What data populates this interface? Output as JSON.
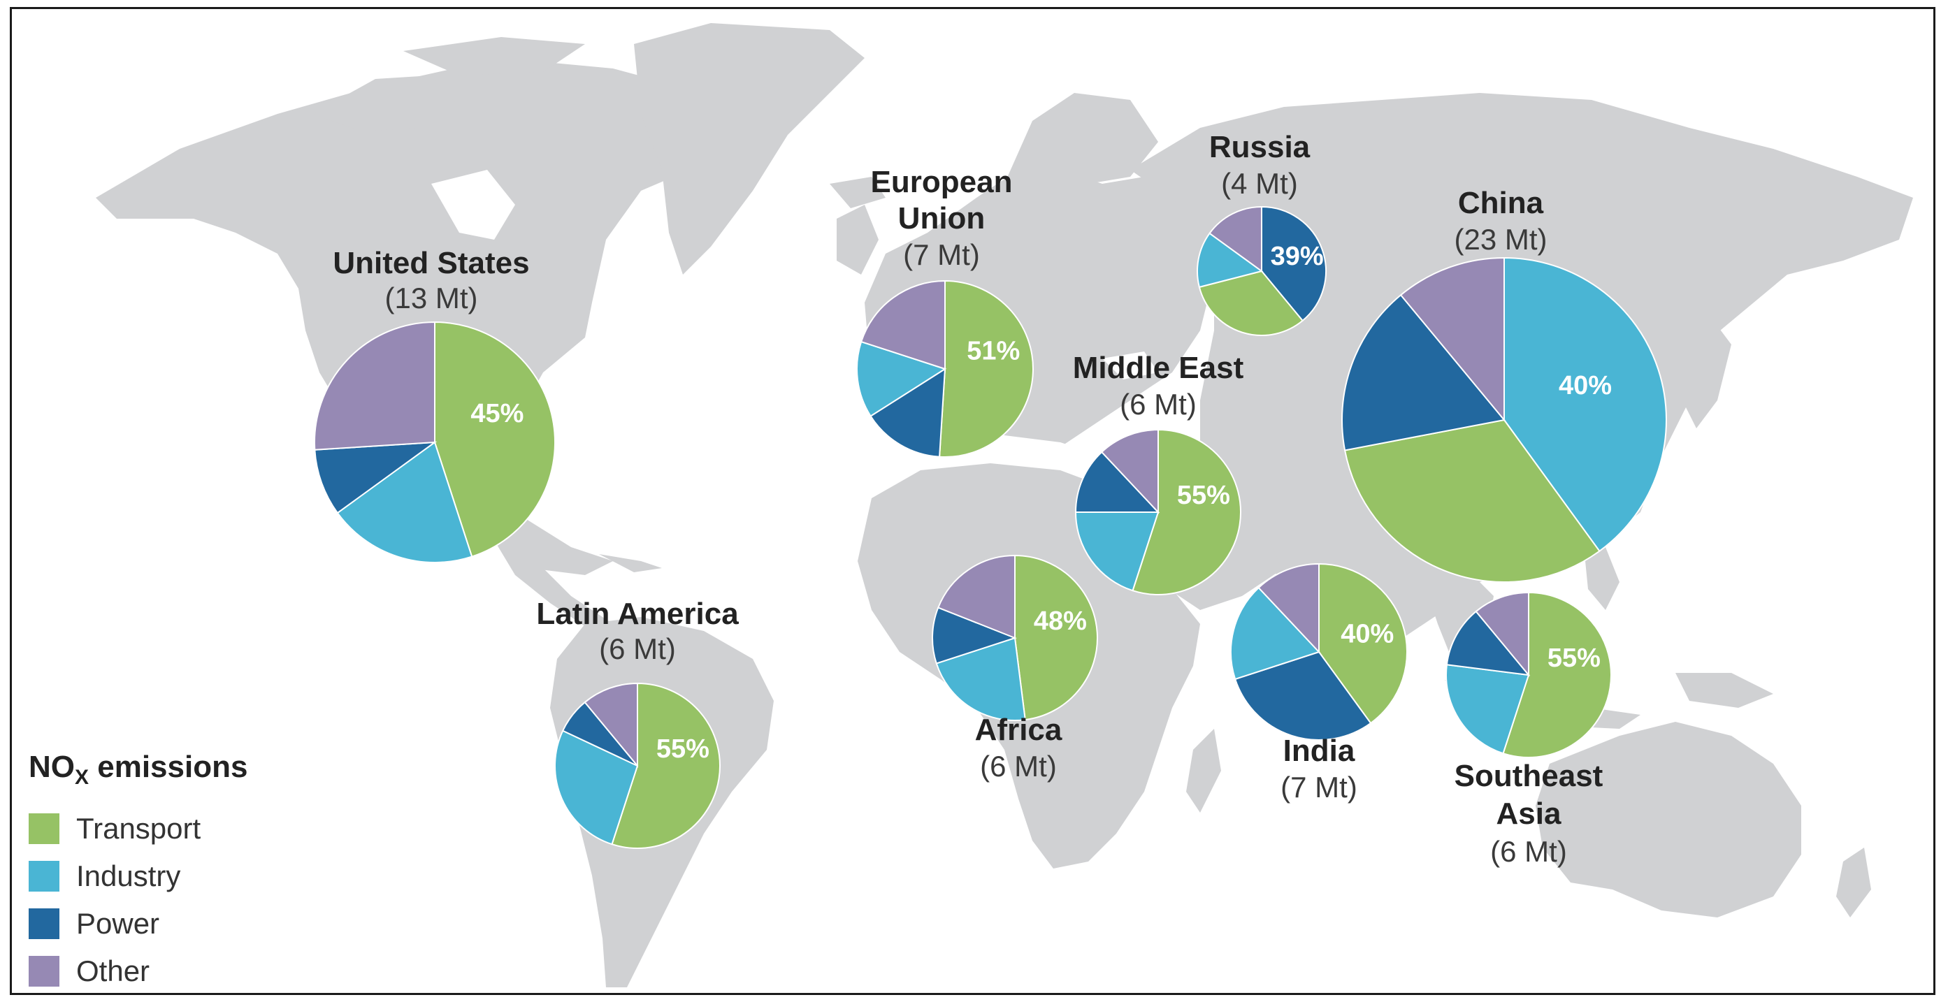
{
  "legend": {
    "title_main": "NO",
    "title_sub": "X",
    "title_rest": " emissions",
    "items": [
      {
        "label": "Transport",
        "color": "#96c265"
      },
      {
        "label": "Industry",
        "color": "#4ab5d4"
      },
      {
        "label": "Power",
        "color": "#22689f"
      },
      {
        "label": "Other",
        "color": "#9689b4"
      }
    ]
  },
  "chart_data": {
    "type": "pie",
    "sectors": [
      "Transport",
      "Industry",
      "Power",
      "Other"
    ],
    "colors": {
      "Transport": "#96c265",
      "Industry": "#4ab5d4",
      "Power": "#22689f",
      "Other": "#9689b4"
    },
    "regions": [
      {
        "id": "united-states",
        "name_lines": [
          "United States"
        ],
        "amount": "(13 Mt)",
        "total_mt": 13,
        "label": "45%",
        "label_sector": "Transport",
        "shares": {
          "Transport": 45,
          "Industry": 20,
          "Power": 9,
          "Other": 26
        }
      },
      {
        "id": "european-union",
        "name_lines": [
          "European",
          "Union"
        ],
        "amount": "(7 Mt)",
        "total_mt": 7,
        "label": "51%",
        "label_sector": "Transport",
        "shares": {
          "Transport": 51,
          "Industry": 14,
          "Power": 15,
          "Other": 20
        }
      },
      {
        "id": "russia",
        "name_lines": [
          "Russia"
        ],
        "amount": "(4 Mt)",
        "total_mt": 4,
        "label": "39%",
        "label_sector": "Power",
        "shares": {
          "Power": 39,
          "Transport": 32,
          "Industry": 14,
          "Other": 15
        }
      },
      {
        "id": "china",
        "name_lines": [
          "China"
        ],
        "amount": "(23 Mt)",
        "total_mt": 23,
        "label": "40%",
        "label_sector": "Industry",
        "shares": {
          "Industry": 40,
          "Transport": 32,
          "Power": 17,
          "Other": 11
        }
      },
      {
        "id": "middle-east",
        "name_lines": [
          "Middle East"
        ],
        "amount": "(6 Mt)",
        "total_mt": 6,
        "label": "55%",
        "label_sector": "Transport",
        "shares": {
          "Transport": 55,
          "Industry": 20,
          "Power": 13,
          "Other": 12
        }
      },
      {
        "id": "latin-america",
        "name_lines": [
          "Latin America"
        ],
        "amount": "(6 Mt)",
        "total_mt": 6,
        "label": "55%",
        "label_sector": "Transport",
        "shares": {
          "Transport": 55,
          "Industry": 27,
          "Power": 7,
          "Other": 11
        }
      },
      {
        "id": "africa",
        "name_lines": [
          "Africa"
        ],
        "amount": "(6 Mt)",
        "total_mt": 6,
        "label": "48%",
        "label_sector": "Transport",
        "shares": {
          "Transport": 48,
          "Industry": 22,
          "Power": 11,
          "Other": 19
        }
      },
      {
        "id": "india",
        "name_lines": [
          "India"
        ],
        "amount": "(7 Mt)",
        "total_mt": 7,
        "label": "40%",
        "label_sector": "Transport",
        "shares": {
          "Transport": 40,
          "Power": 30,
          "Industry": 18,
          "Other": 12
        }
      },
      {
        "id": "southeast-asia",
        "name_lines": [
          "Southeast",
          "Asia"
        ],
        "amount": "(6 Mt)",
        "total_mt": 6,
        "label": "55%",
        "label_sector": "Transport",
        "shares": {
          "Transport": 55,
          "Industry": 22,
          "Power": 12,
          "Other": 11
        }
      }
    ]
  }
}
